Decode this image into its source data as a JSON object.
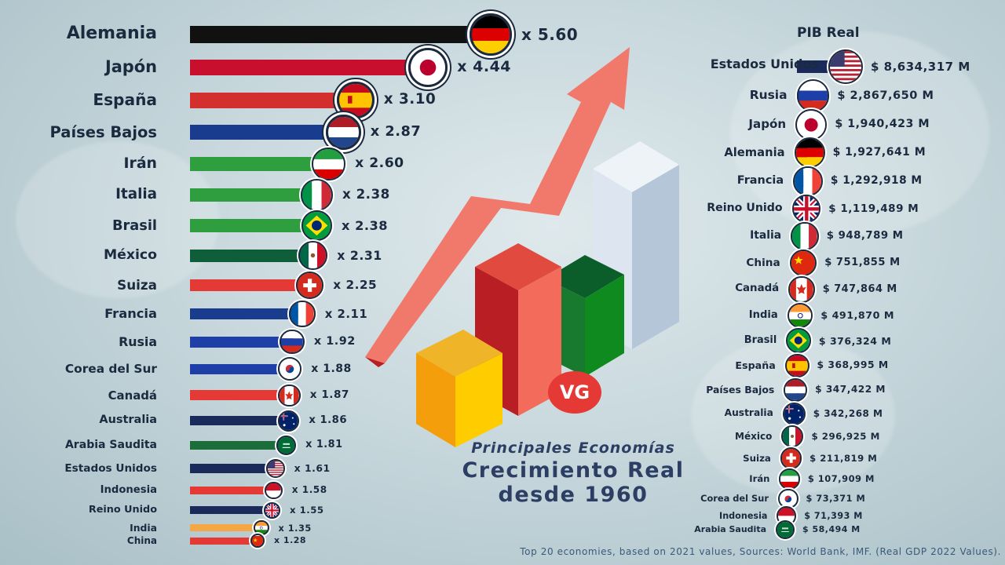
{
  "chart_data": [
    {
      "type": "bar",
      "orientation": "horizontal",
      "title": "",
      "value_prefix": "x ",
      "categories": [
        "Alemania",
        "Japón",
        "España",
        "Países Bajos",
        "Irán",
        "Italia",
        "Brasil",
        "México",
        "Suiza",
        "Francia",
        "Rusia",
        "Corea del Sur",
        "Canadá",
        "Australia",
        "Arabia Saudita",
        "Estados Unidos",
        "Indonesia",
        "Reino Unido",
        "India",
        "China"
      ],
      "values": [
        5.6,
        4.44,
        3.1,
        2.87,
        2.6,
        2.38,
        2.38,
        2.31,
        2.25,
        2.11,
        1.92,
        1.88,
        1.87,
        1.86,
        1.81,
        1.61,
        1.58,
        1.55,
        1.35,
        1.28
      ],
      "value_labels": [
        "x 5.60",
        "x 4.44",
        "x 3.10",
        "x 2.87",
        "x 2.60",
        "x 2.38",
        "x 2.38",
        "x 2.31",
        "x 2.25",
        "x 2.11",
        "x 1.92",
        "x 1.88",
        "x 1.87",
        "x 1.86",
        "x 1.81",
        "x 1.61",
        "x 1.58",
        "x 1.55",
        "x 1.35",
        "x 1.28"
      ],
      "colors": [
        "#111111",
        "#c8102e",
        "#d32f2f",
        "#1a3c8f",
        "#2e9e3e",
        "#2e9e3e",
        "#2e9e3e",
        "#0f5e3a",
        "#e53935",
        "#1a3c8f",
        "#1f3fa8",
        "#1f3fa8",
        "#e53935",
        "#1a2a5a",
        "#1b6e3a",
        "#1a2a5a",
        "#e53935",
        "#1a2a5a",
        "#f4a742",
        "#e53935"
      ],
      "flags": [
        "germany-flag",
        "japan-flag",
        "spain-flag",
        "netherlands-flag",
        "iran-flag",
        "italy-flag",
        "brazil-flag",
        "mexico-flag",
        "switzerland-flag",
        "france-flag",
        "russia-flag",
        "south-korea-flag",
        "canada-flag",
        "australia-flag",
        "saudi-arabia-flag",
        "usa-flag",
        "indonesia-flag",
        "uk-flag",
        "india-flag",
        "china-flag"
      ],
      "xlim": [
        0,
        5.6
      ]
    },
    {
      "type": "bar",
      "orientation": "horizontal",
      "title": "PIB Real",
      "categories": [
        "Estados Unidos",
        "Rusia",
        "Japón",
        "Alemania",
        "Francia",
        "Reino Unido",
        "Italia",
        "China",
        "Canadá",
        "India",
        "Brasil",
        "España",
        "Países Bajos",
        "Australia",
        "México",
        "Suiza",
        "Irán",
        "Corea del Sur",
        "Indonesia",
        "Arabia Saudita"
      ],
      "values": [
        8634317,
        2867650,
        1940423,
        1927641,
        1292918,
        1119489,
        948789,
        751855,
        747864,
        491870,
        376324,
        368995,
        347422,
        342268,
        296925,
        211819,
        107909,
        73371,
        71393,
        58494
      ],
      "value_labels": [
        "$ 8,634,317 M",
        "$ 2,867,650 M",
        "$ 1,940,423 M",
        "$ 1,927,641 M",
        "$ 1,292,918 M",
        "$ 1,119,489 M",
        "$ 948,789 M",
        "$ 751,855 M",
        "$ 747,864 M",
        "$ 491,870 M",
        "$ 376,324 M",
        "$ 368,995 M",
        "$ 347,422 M",
        "$ 342,268 M",
        "$ 296,925 M",
        "$ 211,819 M",
        "$ 107,909 M",
        "$ 73,371 M",
        "$ 71,393 M",
        "$ 58,494 M"
      ],
      "colors": [
        "#1a2a5a",
        "#1f3fa8",
        "#c8102e",
        "#111111",
        "#1a3c8f",
        "#1a2a5a",
        "#2e9e3e",
        "#e53935",
        "#e53935",
        "#f4a742",
        "#2e9e3e",
        "#d32f2f",
        "#1a3c8f",
        "#1a2a5a",
        "#0f5e3a",
        "#e53935",
        "#2e9e3e",
        "#1f3fa8",
        "#e53935",
        "#1b6e3a"
      ],
      "flags": [
        "usa-flag",
        "russia-flag",
        "japan-flag",
        "germany-flag",
        "france-flag",
        "uk-flag",
        "italy-flag",
        "china-flag",
        "canada-flag",
        "india-flag",
        "brazil-flag",
        "spain-flag",
        "netherlands-flag",
        "australia-flag",
        "mexico-flag",
        "switzerland-flag",
        "iran-flag",
        "south-korea-flag",
        "indonesia-flag",
        "saudi-arabia-flag"
      ]
    }
  ],
  "center_title": {
    "line1": "Principales Economías",
    "line2": "Crecimiento Real",
    "line3": "desde 1960"
  },
  "logo_text": "VG",
  "footer": "Top 20 economies, based on 2021 values, Sources: World Bank, IMF. (Real GDP 2022 Values).",
  "colors": {
    "text": "#1b2a3f",
    "title": "#2c3e63",
    "arrow": "#e04a3f",
    "logo": "#e53935"
  }
}
